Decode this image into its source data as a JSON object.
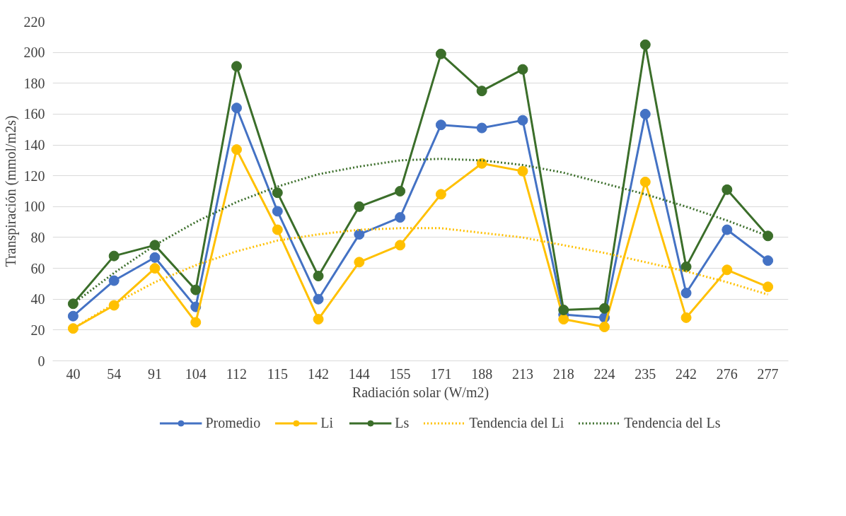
{
  "chart_data": {
    "type": "line",
    "xlabel": "Radiación solar (W/m2)",
    "ylabel": "Transpiración (mmol/m2s)",
    "categories": [
      "40",
      "54",
      "91",
      "104",
      "112",
      "115",
      "142",
      "144",
      "155",
      "171",
      "188",
      "213",
      "218",
      "224",
      "235",
      "242",
      "276",
      "277"
    ],
    "ylim": [
      0,
      220
    ],
    "yticks": [
      0,
      20,
      40,
      60,
      80,
      100,
      120,
      140,
      160,
      180,
      200,
      220
    ],
    "grid": "y",
    "legend": "bottom",
    "marker": "circle",
    "line_style": "solid",
    "series": [
      {
        "name": "Promedio",
        "color": "#4472c4",
        "values": [
          29,
          52,
          67,
          35,
          164,
          97,
          40,
          82,
          93,
          153,
          151,
          156,
          30,
          28,
          160,
          44,
          85,
          65
        ]
      },
      {
        "name": "Li",
        "color": "#ffc000",
        "values": [
          21,
          36,
          60,
          25,
          137,
          85,
          27,
          64,
          75,
          108,
          128,
          123,
          27,
          22,
          116,
          28,
          59,
          48
        ]
      },
      {
        "name": "Ls",
        "color": "#3b6e2a",
        "values": [
          37,
          68,
          75,
          46,
          191,
          109,
          55,
          100,
          110,
          199,
          175,
          189,
          33,
          34,
          205,
          61,
          111,
          81
        ]
      },
      {
        "name": "Tendencia del Li",
        "color": "#ffc000",
        "marker": "none",
        "line_style": "dotted",
        "values": [
          21,
          37,
          51,
          62,
          71,
          78,
          82,
          85,
          86,
          86,
          83,
          80,
          75,
          70,
          64,
          58,
          51,
          43
        ]
      },
      {
        "name": "Tendencia del Ls",
        "color": "#3b6e2a",
        "marker": "none",
        "line_style": "dotted",
        "values": [
          37,
          57,
          75,
          90,
          103,
          113,
          121,
          126,
          130,
          131,
          130,
          127,
          122,
          115,
          108,
          100,
          91,
          81
        ]
      }
    ]
  }
}
